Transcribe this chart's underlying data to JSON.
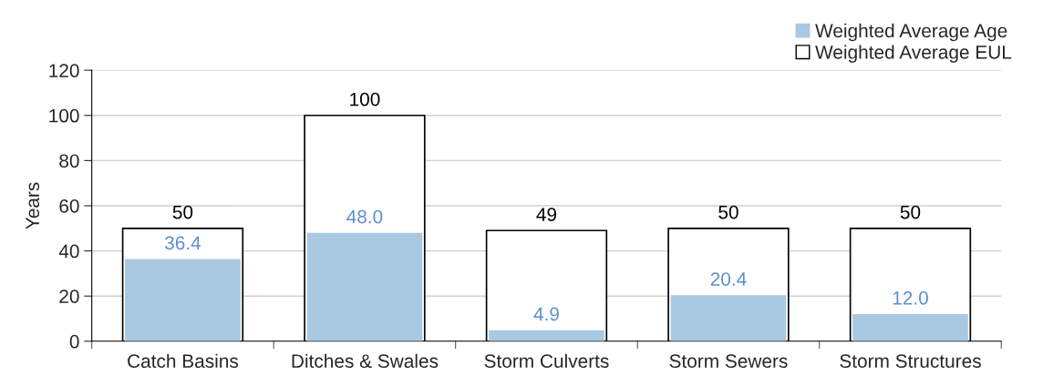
{
  "chart_data": {
    "type": "bar",
    "ylabel": "Years",
    "categories": [
      "Catch Basins",
      "Ditches & Swales",
      "Storm Culverts",
      "Storm Sewers",
      "Storm Structures"
    ],
    "series": [
      {
        "name": "Weighted Average EUL",
        "color": "#ffffff",
        "values": [
          50,
          100,
          49,
          50,
          50
        ],
        "value_labels": [
          "50",
          "100",
          "49",
          "50",
          "50"
        ]
      },
      {
        "name": "Weighted Average Age",
        "color": "#a9c9e3",
        "values": [
          36.4,
          48.0,
          4.9,
          20.4,
          12.0
        ],
        "value_labels": [
          "36.4",
          "48.0",
          "4.9",
          "20.4",
          "12.0"
        ]
      }
    ],
    "ylim": [
      0,
      120
    ],
    "yticks": [
      0,
      20,
      40,
      60,
      80,
      100,
      120
    ],
    "grid": "y",
    "legend": "top right"
  }
}
